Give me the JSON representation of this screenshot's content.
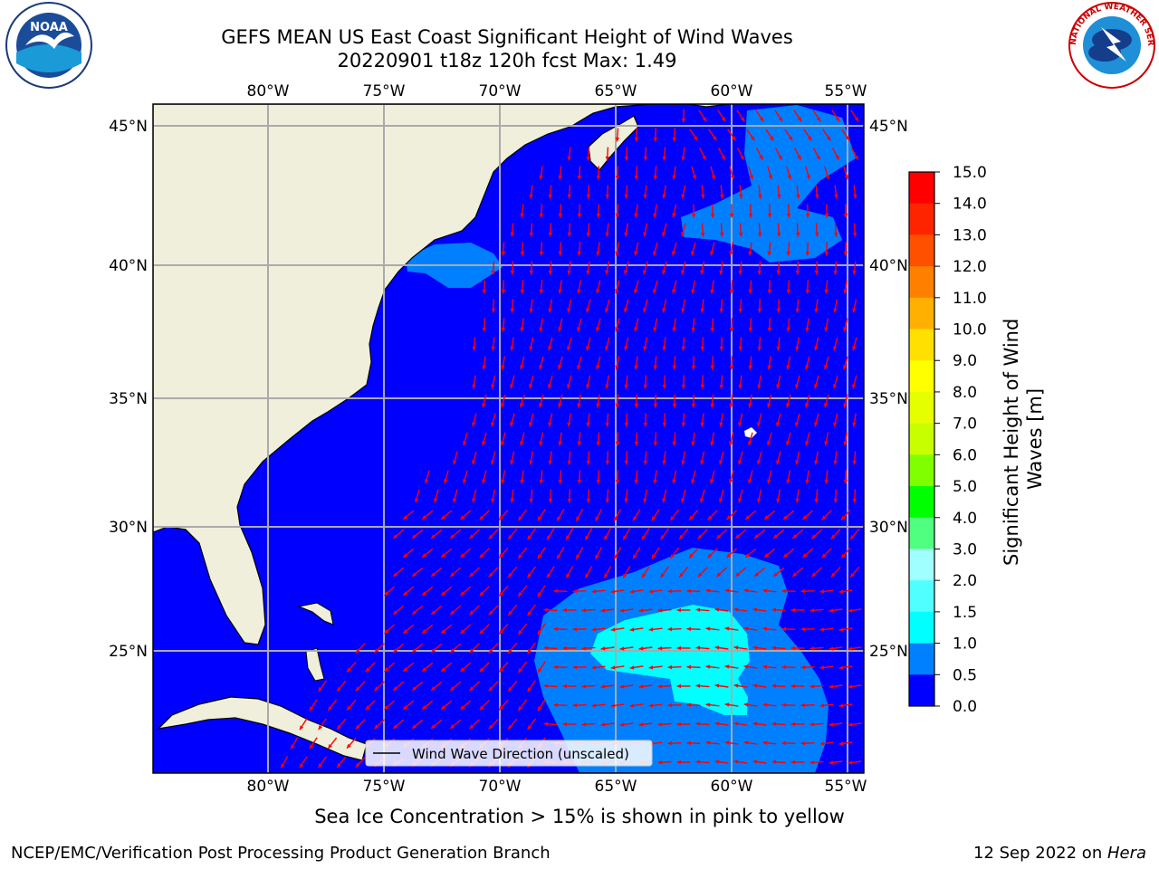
{
  "title": {
    "line1": "GEFS MEAN US East Coast Significant Height of Wind Waves",
    "line2": "20220901 t18z 120h fcst   Max: 1.49"
  },
  "logos": {
    "left": {
      "icon": "noaa-logo",
      "text": "NOAA"
    },
    "right": {
      "icon": "nws-logo",
      "ring_text": "NATIONAL WEATHER SERVICE"
    }
  },
  "map": {
    "lon_labels": [
      "80°W",
      "75°W",
      "70°W",
      "65°W",
      "60°W",
      "55°W"
    ],
    "lat_labels": [
      "45°N",
      "40°N",
      "35°N",
      "30°N",
      "25°N"
    ],
    "colors": {
      "ocean": "#0000ff",
      "land": "#efefdc",
      "band_0_5": "#0080ff",
      "band_1_0": "#00ffff",
      "arrow": "#ff0000",
      "grid": "#aaaaaa"
    },
    "legend": "Wind Wave Direction (unscaled)"
  },
  "colorbar": {
    "label": "Significant Height of Wind Waves [m]",
    "label_line1": "Significant Height of Wind",
    "label_line2": "Waves [m]",
    "ticks": [
      "15.0",
      "14.0",
      "13.0",
      "12.0",
      "11.0",
      "10.0",
      "9.0",
      "8.0",
      "7.0",
      "6.0",
      "5.0",
      "4.0",
      "3.0",
      "2.0",
      "1.5",
      "1.0",
      "0.5",
      "0.0"
    ],
    "colors": [
      "#ff0000",
      "#ff2400",
      "#ff5000",
      "#ff8000",
      "#ffb000",
      "#ffe000",
      "#ffff00",
      "#e6ff00",
      "#c8ff00",
      "#80ff00",
      "#00ff00",
      "#50ff80",
      "#a0ffff",
      "#50ffff",
      "#00ffff",
      "#0080ff",
      "#0000ff"
    ]
  },
  "footer": {
    "note": "Sea Ice Concentration > 15% is shown in pink to yellow",
    "branch": "NCEP/EMC/Verification Post Processing Product Generation Branch",
    "date_prefix": "12 Sep 2022 on ",
    "machine": "Hera"
  }
}
